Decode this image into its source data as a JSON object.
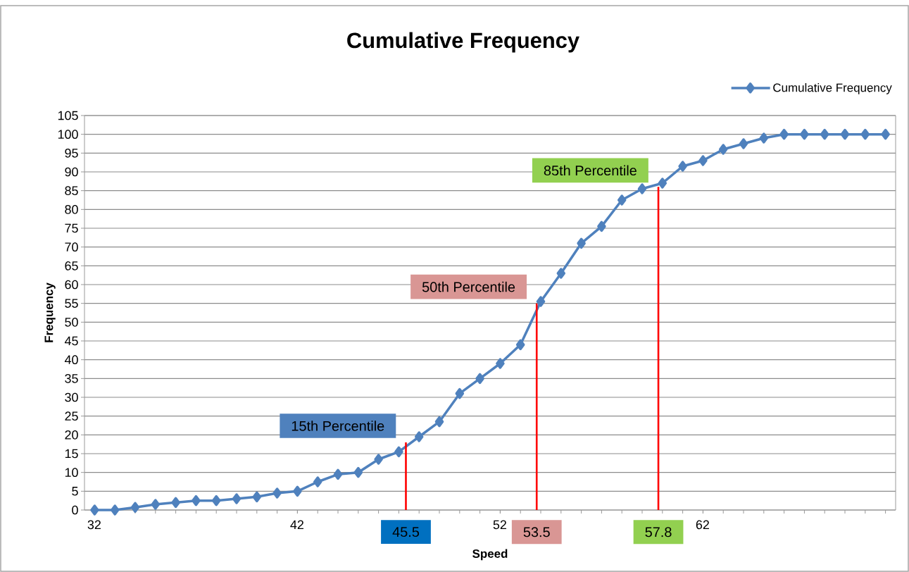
{
  "chart_data": {
    "type": "line",
    "title": "Cumulative Frequency",
    "xlabel": "Speed",
    "ylabel": "Frequency",
    "x": [
      32,
      33,
      34,
      35,
      36,
      37,
      38,
      39,
      40,
      41,
      42,
      43,
      44,
      45,
      46,
      47,
      48,
      49,
      50,
      51,
      52,
      53,
      54,
      55,
      56,
      57,
      58,
      59,
      60,
      61,
      62,
      63,
      64,
      65,
      66,
      67,
      68,
      69,
      70,
      71
    ],
    "series": [
      {
        "name": "Cumulative Frequency",
        "color": "#4f81bd",
        "values": [
          0,
          0,
          0.7,
          1.5,
          2,
          2.5,
          2.5,
          3,
          3.5,
          4.5,
          5,
          7.5,
          9.5,
          10,
          13.5,
          15.5,
          19.5,
          23.5,
          31,
          35,
          39,
          44,
          55.5,
          63,
          71,
          75.5,
          82.5,
          85.5,
          87,
          91.5,
          93,
          96,
          97.5,
          99,
          100,
          100,
          100,
          100,
          100,
          100
        ]
      },
      {
        "type": "line",
        "color": "#ff0000",
        "marker": "none",
        "x": [
          47.35,
          47.35
        ],
        "values": [
          0,
          18
        ]
      },
      {
        "type": "line",
        "color": "#ff0000",
        "marker": "none",
        "x": [
          53.8,
          53.8
        ],
        "values": [
          0,
          55
        ]
      },
      {
        "type": "line",
        "color": "#ff0000",
        "marker": "none",
        "x": [
          59.8,
          59.8
        ],
        "values": [
          0,
          86
        ]
      }
    ],
    "annotations": [
      "15th Percentile",
      "50th Percentile",
      "85th Percentile",
      "45.5",
      "53.5",
      "57.8"
    ],
    "xlim": [
      31.5,
      71.5
    ],
    "xticks": [
      32,
      42,
      52,
      62
    ],
    "ylim": [
      0,
      105
    ],
    "yticks": [
      0,
      5,
      10,
      15,
      20,
      25,
      30,
      35,
      40,
      45,
      50,
      55,
      60,
      65,
      70,
      75,
      80,
      85,
      90,
      95,
      100,
      105
    ],
    "grid": "y",
    "legend": "top right",
    "marker": "diamond",
    "line_style": "solid"
  }
}
